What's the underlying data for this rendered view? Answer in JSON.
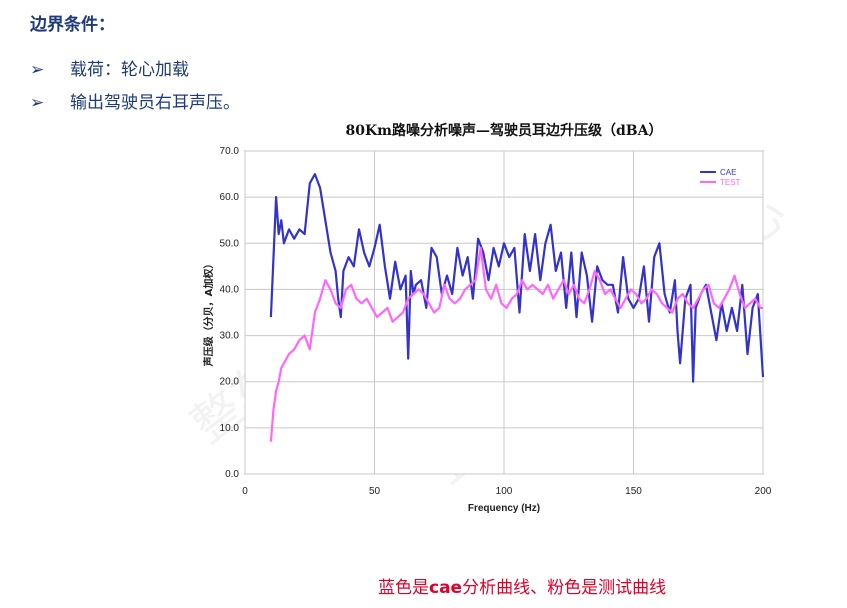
{
  "heading": "边界条件：",
  "bullets": [
    {
      "mark": "➢",
      "text": "载荷：轮心加载"
    },
    {
      "mark": "➢",
      "text": "输出驾驶员右耳声压。"
    }
  ],
  "caption": {
    "part1": "蓝色是",
    "cae": "cae",
    "part2": "分析曲线、粉色是测试曲线"
  },
  "watermark": "整车性能与分析中心",
  "chart_data": {
    "type": "line",
    "title": "80Km路噪分析噪声—驾驶员耳边升压级（dBA）",
    "xlabel": "Frequency (Hz)",
    "ylabel": "声压级（分贝，A加权）",
    "xlim": [
      0,
      200
    ],
    "ylim": [
      0,
      70
    ],
    "xticks": [
      "0",
      "50",
      "100",
      "150",
      "200"
    ],
    "yticks": [
      "0.0",
      "10.0",
      "20.0",
      "30.0",
      "40.0",
      "50.0",
      "60.0",
      "70.0"
    ],
    "grid": true,
    "legend": "top-right",
    "series": [
      {
        "name": "CAE",
        "color": "#3333cc",
        "x": [
          10,
          12,
          13,
          14,
          15,
          17,
          19,
          21,
          23,
          25,
          27,
          29,
          31,
          33,
          35,
          36,
          37,
          38,
          40,
          42,
          44,
          46,
          48,
          50,
          52,
          54,
          56,
          58,
          60,
          62,
          63,
          64,
          65,
          66,
          68,
          70,
          72,
          74,
          76,
          78,
          80,
          82,
          84,
          86,
          88,
          90,
          92,
          94,
          96,
          98,
          100,
          102,
          104,
          106,
          108,
          110,
          112,
          114,
          116,
          118,
          120,
          122,
          124,
          126,
          128,
          130,
          132,
          134,
          136,
          138,
          140,
          142,
          144,
          146,
          148,
          150,
          152,
          154,
          156,
          158,
          160,
          162,
          164,
          166,
          167,
          168,
          170,
          172,
          173,
          174,
          176,
          178,
          180,
          182,
          184,
          186,
          188,
          190,
          192,
          194,
          196,
          198,
          199,
          200
        ],
        "y": [
          34,
          60,
          52,
          55,
          50,
          53,
          51,
          53,
          52,
          63,
          65,
          62,
          55,
          48,
          44,
          38,
          34,
          44,
          47,
          45,
          53,
          48,
          45,
          49,
          54,
          45,
          38,
          46,
          40,
          43,
          25,
          44,
          39,
          41,
          42,
          36,
          49,
          47,
          39,
          43,
          39,
          49,
          43,
          47,
          38,
          51,
          48,
          42,
          49,
          45,
          50,
          47,
          49,
          35,
          52,
          44,
          52,
          42,
          50,
          54,
          44,
          48,
          36,
          48,
          34,
          48,
          43,
          33,
          45,
          42,
          41,
          41,
          35,
          47,
          38,
          36,
          38,
          45,
          33,
          47,
          50,
          39,
          35,
          42,
          31,
          24,
          38,
          41,
          20,
          36,
          39,
          41,
          35,
          29,
          37,
          31,
          36,
          31,
          41,
          26,
          36,
          39,
          30,
          21
        ]
      },
      {
        "name": "TEST",
        "color": "#ff66ff",
        "x": [
          10,
          11,
          12,
          13,
          14,
          15,
          17,
          19,
          21,
          23,
          25,
          27,
          29,
          31,
          33,
          35,
          37,
          39,
          41,
          43,
          45,
          47,
          49,
          51,
          53,
          55,
          57,
          59,
          61,
          63,
          65,
          67,
          69,
          71,
          73,
          75,
          77,
          79,
          81,
          83,
          85,
          87,
          89,
          91,
          93,
          95,
          97,
          99,
          101,
          103,
          105,
          107,
          109,
          111,
          113,
          115,
          117,
          119,
          121,
          123,
          125,
          127,
          129,
          131,
          133,
          135,
          137,
          139,
          141,
          143,
          145,
          147,
          149,
          151,
          153,
          155,
          157,
          159,
          161,
          163,
          165,
          167,
          169,
          171,
          173,
          175,
          177,
          179,
          181,
          183,
          185,
          187,
          189,
          191,
          193,
          195,
          197,
          199,
          200
        ],
        "y": [
          7,
          14,
          18,
          20,
          23,
          24,
          26,
          27,
          29,
          30,
          27,
          35,
          38,
          42,
          40,
          37,
          36,
          40,
          41,
          38,
          37,
          38,
          36,
          34,
          35,
          36,
          33,
          34,
          35,
          38,
          39,
          40,
          39,
          37,
          35,
          36,
          41,
          38,
          37,
          38,
          40,
          41,
          42,
          49,
          40,
          38,
          41,
          37,
          36,
          38,
          39,
          42,
          40,
          41,
          40,
          39,
          41,
          38,
          40,
          42,
          39,
          41,
          38,
          37,
          40,
          44,
          42,
          39,
          40,
          38,
          36,
          38,
          40,
          39,
          37,
          38,
          40,
          39,
          37,
          36,
          35,
          38,
          39,
          37,
          36,
          38,
          40,
          41,
          37,
          36,
          38,
          40,
          43,
          39,
          36,
          37,
          38,
          36,
          36
        ]
      }
    ]
  }
}
